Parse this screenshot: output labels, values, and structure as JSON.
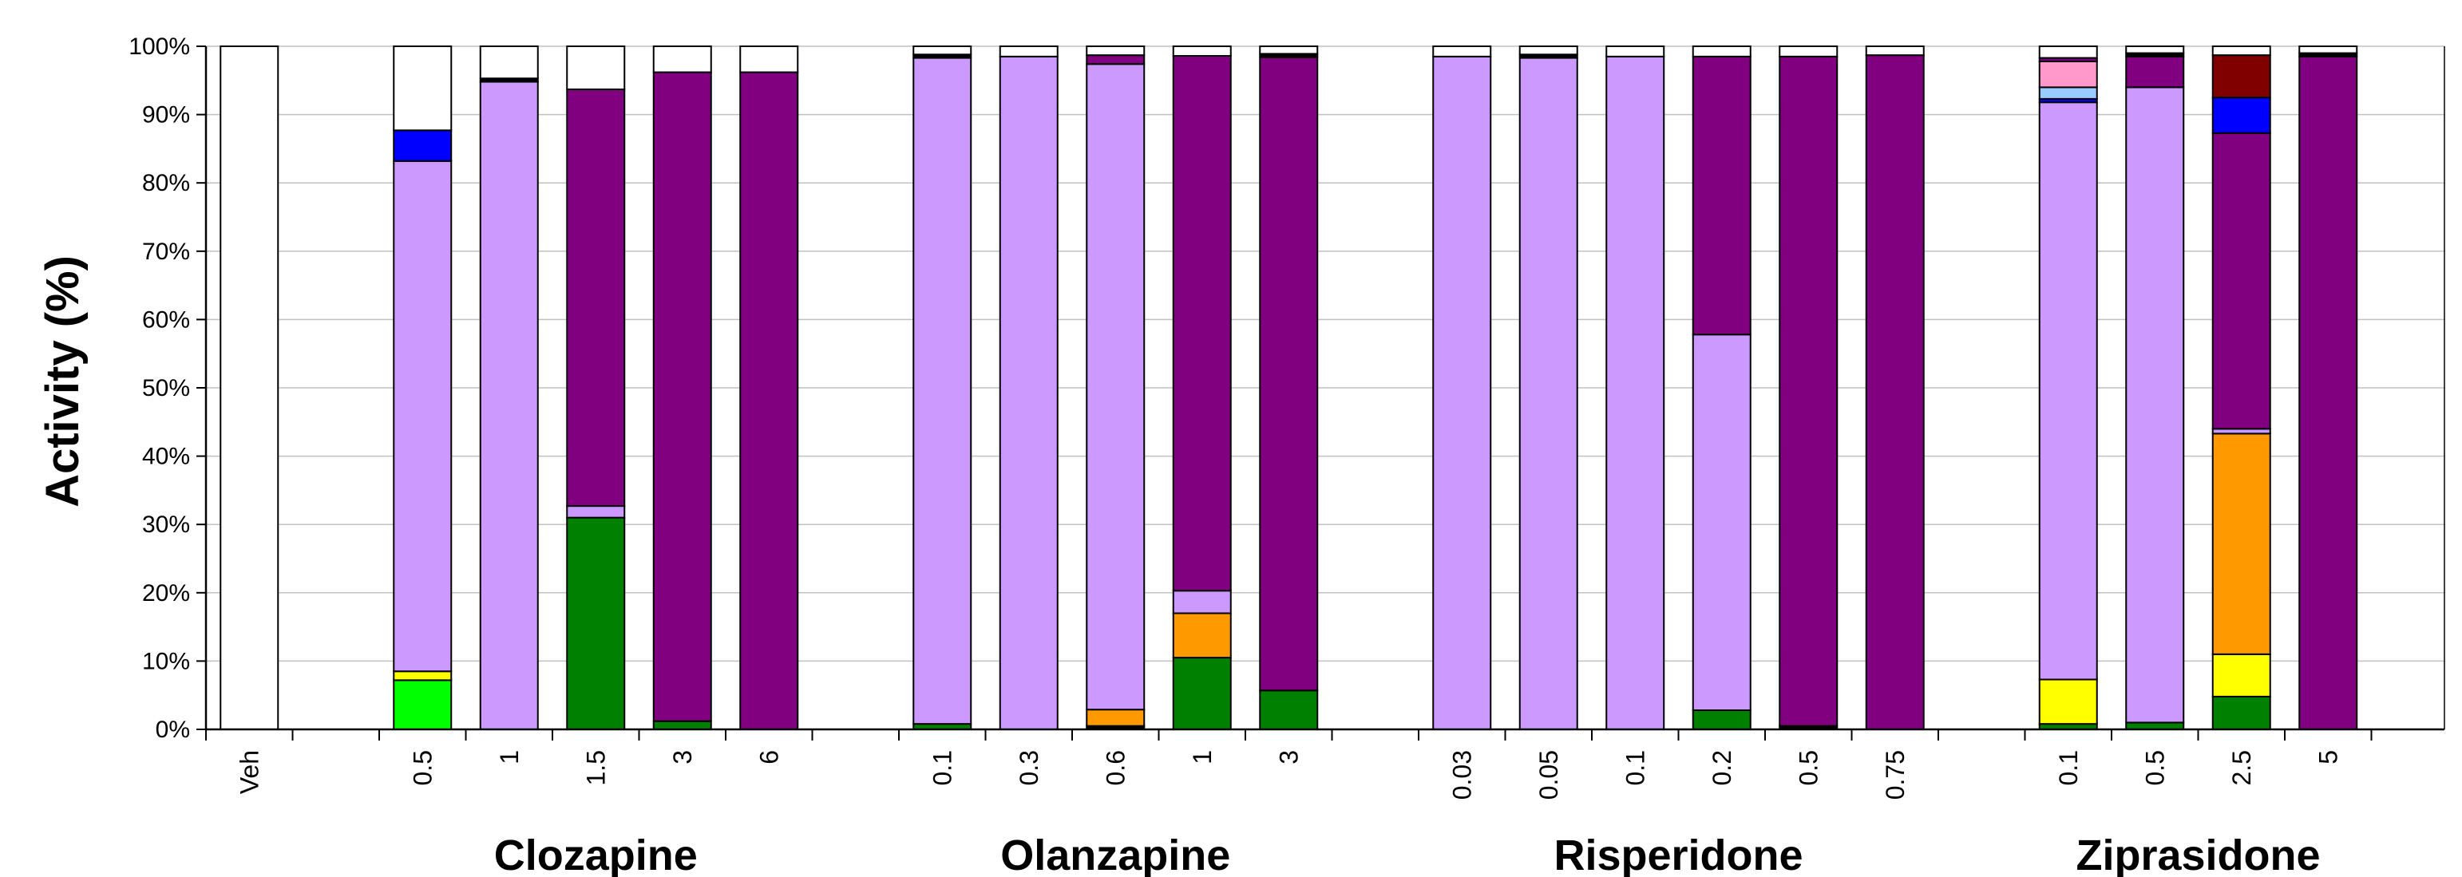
{
  "chart_data": {
    "type": "bar",
    "stacked": true,
    "ylabel": "Activity (%)",
    "ylim": [
      0,
      100
    ],
    "yticks": [
      "0%",
      "10%",
      "20%",
      "30%",
      "40%",
      "50%",
      "60%",
      "70%",
      "80%",
      "90%",
      "100%"
    ],
    "grid": true,
    "segment_colors": {
      "green": "#008000",
      "lime": "#00ff00",
      "yellow": "#ffff00",
      "orange": "#ff9900",
      "lavender": "#cc99ff",
      "purple": "#800080",
      "blue": "#0000ff",
      "light_blue": "#99ccff",
      "pink": "#ff99cc",
      "maroon": "#800000",
      "black": "#000000",
      "white": "#ffffff"
    },
    "groups": [
      {
        "name": "",
        "categories": [
          "Veh"
        ]
      },
      {
        "name": "Clozapine",
        "categories": [
          "0.5",
          "1",
          "1.5",
          "3",
          "6"
        ]
      },
      {
        "name": "Olanzapine",
        "categories": [
          "0.1",
          "0.3",
          "0.6",
          "1",
          "3"
        ]
      },
      {
        "name": "Risperidone",
        "categories": [
          "0.03",
          "0.05",
          "0.1",
          "0.2",
          "0.5",
          "0.75"
        ]
      },
      {
        "name": "Ziprasidone",
        "categories": [
          "0.1",
          "0.5",
          "2.5",
          "5"
        ]
      }
    ],
    "bars": [
      {
        "label": "Veh",
        "segments": [
          {
            "c": "white",
            "v": 100
          }
        ]
      },
      {
        "label": "0.5",
        "segments": [
          {
            "c": "lime",
            "v": 7.2
          },
          {
            "c": "yellow",
            "v": 1.3
          },
          {
            "c": "lavender",
            "v": 74.7
          },
          {
            "c": "blue",
            "v": 4.5
          },
          {
            "c": "white",
            "v": 12.3
          }
        ]
      },
      {
        "label": "1",
        "segments": [
          {
            "c": "lavender",
            "v": 94.8
          },
          {
            "c": "black",
            "v": 0.5
          },
          {
            "c": "white",
            "v": 4.7
          }
        ]
      },
      {
        "label": "1.5",
        "segments": [
          {
            "c": "green",
            "v": 31.0
          },
          {
            "c": "lavender",
            "v": 1.7
          },
          {
            "c": "purple",
            "v": 61.0
          },
          {
            "c": "white",
            "v": 6.3
          }
        ]
      },
      {
        "label": "3",
        "segments": [
          {
            "c": "green",
            "v": 1.2
          },
          {
            "c": "purple",
            "v": 95.0
          },
          {
            "c": "white",
            "v": 3.8
          }
        ]
      },
      {
        "label": "6",
        "segments": [
          {
            "c": "purple",
            "v": 96.2
          },
          {
            "c": "white",
            "v": 3.8
          }
        ]
      },
      {
        "label": "0.1",
        "segments": [
          {
            "c": "green",
            "v": 0.8
          },
          {
            "c": "lavender",
            "v": 97.5
          },
          {
            "c": "black",
            "v": 0.5
          },
          {
            "c": "white",
            "v": 1.2
          }
        ]
      },
      {
        "label": "0.3",
        "segments": [
          {
            "c": "lavender",
            "v": 98.5
          },
          {
            "c": "white",
            "v": 1.5
          }
        ]
      },
      {
        "label": "0.6",
        "segments": [
          {
            "c": "black",
            "v": 0.5
          },
          {
            "c": "orange",
            "v": 2.4
          },
          {
            "c": "lavender",
            "v": 94.5
          },
          {
            "c": "purple",
            "v": 1.3
          },
          {
            "c": "white",
            "v": 1.3
          }
        ]
      },
      {
        "label": "1",
        "segments": [
          {
            "c": "green",
            "v": 10.5
          },
          {
            "c": "orange",
            "v": 6.5
          },
          {
            "c": "lavender",
            "v": 3.3
          },
          {
            "c": "purple",
            "v": 78.3
          },
          {
            "c": "white",
            "v": 1.4
          }
        ]
      },
      {
        "label": "3",
        "segments": [
          {
            "c": "green",
            "v": 5.7
          },
          {
            "c": "purple",
            "v": 92.7
          },
          {
            "c": "black",
            "v": 0.5
          },
          {
            "c": "white",
            "v": 1.1
          }
        ]
      },
      {
        "label": "0.03",
        "segments": [
          {
            "c": "lavender",
            "v": 98.5
          },
          {
            "c": "white",
            "v": 1.5
          }
        ]
      },
      {
        "label": "0.05",
        "segments": [
          {
            "c": "lavender",
            "v": 98.3
          },
          {
            "c": "black",
            "v": 0.5
          },
          {
            "c": "white",
            "v": 1.2
          }
        ]
      },
      {
        "label": "0.1",
        "segments": [
          {
            "c": "lavender",
            "v": 98.5
          },
          {
            "c": "white",
            "v": 1.5
          }
        ]
      },
      {
        "label": "0.2",
        "segments": [
          {
            "c": "green",
            "v": 2.8
          },
          {
            "c": "lavender",
            "v": 55.0
          },
          {
            "c": "purple",
            "v": 40.7
          },
          {
            "c": "white",
            "v": 1.5
          }
        ]
      },
      {
        "label": "0.5",
        "segments": [
          {
            "c": "black",
            "v": 0.5
          },
          {
            "c": "purple",
            "v": 98.0
          },
          {
            "c": "white",
            "v": 1.5
          }
        ]
      },
      {
        "label": "0.75",
        "segments": [
          {
            "c": "purple",
            "v": 98.7
          },
          {
            "c": "white",
            "v": 1.3
          }
        ]
      },
      {
        "label": "0.1",
        "segments": [
          {
            "c": "green",
            "v": 0.8
          },
          {
            "c": "yellow",
            "v": 6.5
          },
          {
            "c": "lavender",
            "v": 84.5
          },
          {
            "c": "blue",
            "v": 0.5
          },
          {
            "c": "light_blue",
            "v": 1.7
          },
          {
            "c": "pink",
            "v": 3.8
          },
          {
            "c": "purple",
            "v": 0.5
          },
          {
            "c": "white",
            "v": 1.7
          }
        ]
      },
      {
        "label": "0.5",
        "segments": [
          {
            "c": "green",
            "v": 1.0
          },
          {
            "c": "lavender",
            "v": 93.0
          },
          {
            "c": "purple",
            "v": 4.5
          },
          {
            "c": "black",
            "v": 0.5
          },
          {
            "c": "white",
            "v": 1.0
          }
        ]
      },
      {
        "label": "2.5",
        "segments": [
          {
            "c": "green",
            "v": 4.8
          },
          {
            "c": "yellow",
            "v": 6.2
          },
          {
            "c": "orange",
            "v": 32.3
          },
          {
            "c": "lavender",
            "v": 0.7
          },
          {
            "c": "purple",
            "v": 43.3
          },
          {
            "c": "blue",
            "v": 5.2
          },
          {
            "c": "maroon",
            "v": 6.2
          },
          {
            "c": "white",
            "v": 1.3
          }
        ]
      },
      {
        "label": "5",
        "segments": [
          {
            "c": "purple",
            "v": 98.5
          },
          {
            "c": "black",
            "v": 0.5
          },
          {
            "c": "white",
            "v": 1.0
          }
        ]
      }
    ]
  }
}
